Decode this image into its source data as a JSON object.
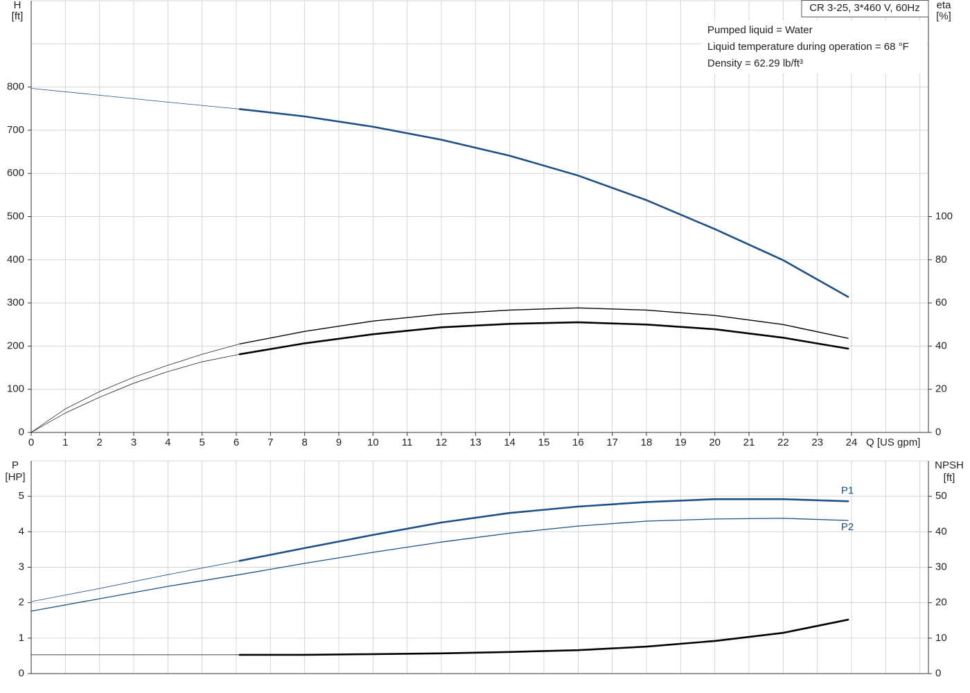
{
  "chart_data": [
    {
      "type": "line",
      "title": "CR 3-25, 3*460 V, 60Hz",
      "annotations": [
        "Pumped liquid = Water",
        "Liquid temperature during operation = 68 °F",
        "Density = 62.29 lb/ft³"
      ],
      "ylabel": "H",
      "yunit": "[ft]",
      "y2label": "eta",
      "y2unit": "[%]",
      "xlabel": "Q [US gpm]",
      "xlim": [
        0,
        26.25
      ],
      "xticks": [
        0,
        1,
        2,
        3,
        4,
        5,
        6,
        7,
        8,
        9,
        10,
        11,
        12,
        13,
        14,
        15,
        16,
        17,
        18,
        19,
        20,
        21,
        22,
        23,
        24
      ],
      "xgrid": [
        0,
        1,
        2,
        3,
        4,
        5,
        6,
        7,
        8,
        9,
        10,
        11,
        12,
        13,
        14,
        15,
        16,
        17,
        18,
        19,
        20,
        21,
        22,
        23,
        24,
        25,
        26
      ],
      "ylim": [
        0,
        1000
      ],
      "yticks": [
        0,
        100,
        200,
        300,
        400,
        500,
        600,
        700,
        800
      ],
      "ygrid": [
        0,
        100,
        200,
        300,
        400,
        500,
        600,
        700,
        800,
        900,
        1000
      ],
      "y2lim": [
        0,
        200
      ],
      "y2ticks": [
        0,
        20,
        40,
        60,
        80,
        100
      ],
      "series": [
        {
          "color": "#1c4f86",
          "width": 0.8,
          "axis": "y",
          "x": [
            0,
            2,
            4,
            6.1
          ],
          "values": [
            797,
            781,
            765,
            749
          ]
        },
        {
          "color": "#1c4f86",
          "width": 2.6,
          "axis": "y",
          "x": [
            6.1,
            8,
            10,
            12,
            14,
            16,
            18,
            20,
            22,
            23.9
          ],
          "values": [
            749,
            732,
            708,
            678,
            641,
            595,
            538,
            471,
            399,
            314
          ]
        },
        {
          "color": "#000000",
          "width": 0.7,
          "axis": "y2",
          "x": [
            0,
            1,
            2,
            3,
            4,
            5,
            6.1
          ],
          "values": [
            0,
            10.9,
            18.9,
            25.6,
            31.1,
            36.2,
            41.0
          ]
        },
        {
          "color": "#000000",
          "width": 1.4,
          "axis": "y2",
          "x": [
            6.1,
            8,
            10,
            12,
            14,
            16,
            18,
            20,
            22,
            23.9
          ],
          "values": [
            41.0,
            46.8,
            51.6,
            54.8,
            56.7,
            57.7,
            56.7,
            54.2,
            50.0,
            43.6
          ]
        },
        {
          "color": "#000000",
          "width": 0.7,
          "axis": "y2",
          "x": [
            0,
            1,
            2,
            3,
            4,
            5,
            6.1
          ],
          "values": [
            0,
            9.0,
            16.3,
            22.8,
            28.2,
            32.7,
            36.2
          ]
        },
        {
          "color": "#000000",
          "width": 2.6,
          "axis": "y2",
          "x": [
            6.1,
            8,
            10,
            12,
            14,
            16,
            18,
            20,
            22,
            23.9
          ],
          "values": [
            36.2,
            41.3,
            45.5,
            48.7,
            50.3,
            51.0,
            50.0,
            47.8,
            43.9,
            38.8
          ]
        }
      ]
    },
    {
      "type": "line",
      "ylabel": "P",
      "yunit": "[HP]",
      "y2label": "NPSH",
      "y2unit": "[ft]",
      "xlim": [
        0,
        26.25
      ],
      "xgrid": [
        0,
        1,
        2,
        3,
        4,
        5,
        6,
        7,
        8,
        9,
        10,
        11,
        12,
        13,
        14,
        15,
        16,
        17,
        18,
        19,
        20,
        21,
        22,
        23,
        24,
        25,
        26
      ],
      "ylim": [
        0,
        6
      ],
      "yticks": [
        0,
        1,
        2,
        3,
        4,
        5
      ],
      "ygrid": [
        0,
        1,
        2,
        3,
        4,
        5,
        6
      ],
      "y2lim": [
        0,
        60
      ],
      "y2ticks": [
        0,
        10,
        20,
        30,
        40,
        50
      ],
      "series": [
        {
          "color": "#1c4f86",
          "width": 0.8,
          "axis": "y",
          "x": [
            0,
            2,
            4,
            6.1
          ],
          "values": [
            2.03,
            2.4,
            2.79,
            3.18
          ]
        },
        {
          "name": "P1",
          "color": "#1c4f86",
          "width": 2.6,
          "axis": "y",
          "x": [
            6.1,
            8,
            10,
            12,
            14,
            16,
            18,
            20,
            22,
            23.9
          ],
          "values": [
            3.18,
            3.54,
            3.91,
            4.26,
            4.53,
            4.71,
            4.84,
            4.92,
            4.92,
            4.86
          ]
        },
        {
          "name": "P2",
          "color": "#1c4f86",
          "width": 1.3,
          "axis": "y",
          "x": [
            0,
            2,
            4,
            6.1,
            8,
            10,
            12,
            14,
            16,
            18,
            20,
            22,
            23.9
          ],
          "values": [
            1.76,
            2.11,
            2.46,
            2.79,
            3.11,
            3.42,
            3.71,
            3.96,
            4.16,
            4.3,
            4.36,
            4.38,
            4.32
          ]
        },
        {
          "color": "#000000",
          "width": 0.8,
          "axis": "y2",
          "x": [
            0,
            6.1
          ],
          "values": [
            5.3,
            5.3
          ]
        },
        {
          "color": "#000000",
          "width": 2.6,
          "axis": "y2",
          "x": [
            6.1,
            8,
            10,
            12,
            14,
            16,
            18,
            20,
            22,
            23.9
          ],
          "values": [
            5.3,
            5.3,
            5.5,
            5.7,
            6.1,
            6.6,
            7.6,
            9.2,
            11.5,
            15.2
          ]
        }
      ]
    }
  ]
}
